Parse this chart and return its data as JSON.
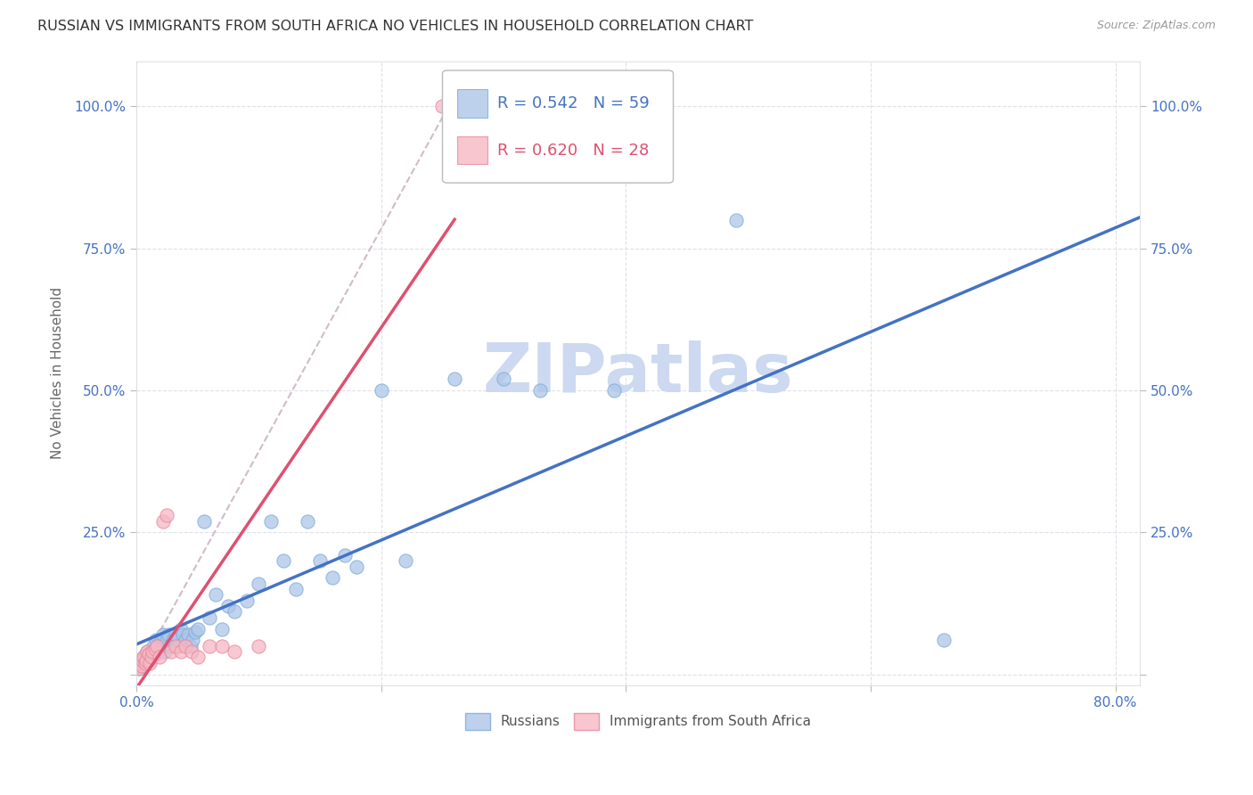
{
  "title": "RUSSIAN VS IMMIGRANTS FROM SOUTH AFRICA NO VEHICLES IN HOUSEHOLD CORRELATION CHART",
  "source_text": "Source: ZipAtlas.com",
  "ylabel": "No Vehicles in Household",
  "xlim": [
    0.0,
    0.82
  ],
  "ylim": [
    -0.02,
    1.08
  ],
  "xtick_labels": [
    "0.0%",
    "",
    "",
    "",
    "80.0%"
  ],
  "xtick_vals": [
    0.0,
    0.2,
    0.4,
    0.6,
    0.8
  ],
  "ytick_labels": [
    "",
    "25.0%",
    "50.0%",
    "75.0%",
    "100.0%"
  ],
  "ytick_vals": [
    0.0,
    0.25,
    0.5,
    0.75,
    1.0
  ],
  "background_color": "#ffffff",
  "grid_color": "#e0e0e8",
  "watermark_text": "ZIPatlas",
  "watermark_color": "#ccd9f0",
  "russian_color": "#aec6e8",
  "russian_edge_color": "#7aabdd",
  "sa_color": "#f5b8c4",
  "sa_edge_color": "#e8889a",
  "russian_r": 0.542,
  "russian_n": 59,
  "sa_r": 0.62,
  "sa_n": 28,
  "title_fontsize": 11.5,
  "axis_label_fontsize": 11,
  "tick_fontsize": 11,
  "tick_color_blue": "#4472c4",
  "legend_fontsize": 13,
  "marker_size": 120,
  "russians_x": [
    0.002,
    0.003,
    0.004,
    0.005,
    0.006,
    0.007,
    0.008,
    0.009,
    0.01,
    0.011,
    0.012,
    0.013,
    0.014,
    0.015,
    0.016,
    0.017,
    0.018,
    0.02,
    0.021,
    0.022,
    0.023,
    0.025,
    0.026,
    0.028,
    0.03,
    0.032,
    0.034,
    0.036,
    0.038,
    0.04,
    0.042,
    0.044,
    0.046,
    0.048,
    0.05,
    0.055,
    0.06,
    0.065,
    0.07,
    0.075,
    0.08,
    0.09,
    0.1,
    0.11,
    0.12,
    0.13,
    0.14,
    0.15,
    0.16,
    0.17,
    0.18,
    0.2,
    0.22,
    0.26,
    0.3,
    0.33,
    0.39,
    0.49,
    0.66
  ],
  "russians_y": [
    0.01,
    0.02,
    0.015,
    0.025,
    0.03,
    0.02,
    0.03,
    0.04,
    0.025,
    0.035,
    0.03,
    0.04,
    0.05,
    0.035,
    0.06,
    0.05,
    0.04,
    0.06,
    0.05,
    0.07,
    0.04,
    0.06,
    0.07,
    0.05,
    0.06,
    0.07,
    0.05,
    0.08,
    0.07,
    0.06,
    0.07,
    0.05,
    0.06,
    0.075,
    0.08,
    0.27,
    0.1,
    0.14,
    0.08,
    0.12,
    0.11,
    0.13,
    0.16,
    0.27,
    0.2,
    0.15,
    0.27,
    0.2,
    0.17,
    0.21,
    0.19,
    0.5,
    0.2,
    0.52,
    0.52,
    0.5,
    0.5,
    0.8,
    0.06
  ],
  "sa_x": [
    0.002,
    0.003,
    0.004,
    0.005,
    0.006,
    0.007,
    0.008,
    0.009,
    0.01,
    0.011,
    0.012,
    0.013,
    0.015,
    0.017,
    0.019,
    0.022,
    0.025,
    0.028,
    0.032,
    0.036,
    0.04,
    0.045,
    0.05,
    0.06,
    0.07,
    0.08,
    0.1,
    0.25
  ],
  "sa_y": [
    0.01,
    0.02,
    0.015,
    0.025,
    0.03,
    0.02,
    0.025,
    0.04,
    0.035,
    0.02,
    0.03,
    0.04,
    0.045,
    0.05,
    0.03,
    0.27,
    0.28,
    0.04,
    0.05,
    0.04,
    0.05,
    0.04,
    0.03,
    0.05,
    0.05,
    0.04,
    0.05,
    1.0
  ],
  "russian_line_color": "#4472c4",
  "sa_line_color": "#e05070",
  "diag_line_color": "#d0bcc8"
}
